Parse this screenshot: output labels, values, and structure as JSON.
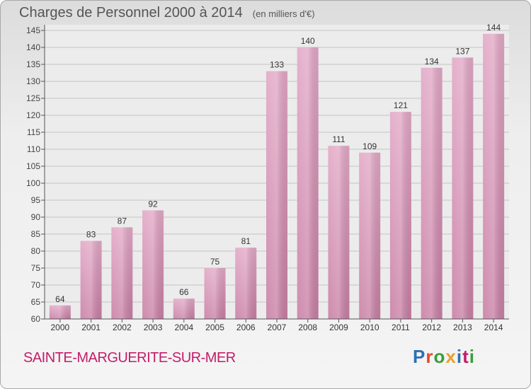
{
  "header": {
    "title": "Charges de Personnel 2000 à 2014",
    "subtitle": "(en milliers d'€)"
  },
  "footer": {
    "commune": "SAINTE-MARGUERITE-SUR-MER",
    "logo_text": "Proxiti"
  },
  "colors": {
    "bar": "#c87fa4",
    "bar_light": "#e2a8c6",
    "commune": "#c21d6a",
    "logo": [
      "#2e6fb5",
      "#e8462c",
      "#3a9d3a",
      "#e8a12c",
      "#2e6fb5",
      "#c21d6a",
      "#3a9d3a"
    ]
  },
  "chart_data": {
    "type": "bar",
    "title": "Charges de Personnel 2000 à 2014",
    "subtitle": "(en milliers d'€)",
    "categories": [
      "2000",
      "2001",
      "2002",
      "2003",
      "2004",
      "2005",
      "2006",
      "2007",
      "2008",
      "2009",
      "2010",
      "2011",
      "2012",
      "2013",
      "2014"
    ],
    "values": [
      64,
      83,
      87,
      92,
      66,
      75,
      81,
      133,
      140,
      111,
      109,
      121,
      134,
      137,
      144
    ],
    "ylim": [
      60,
      145
    ],
    "yticks": [
      60,
      65,
      70,
      75,
      80,
      85,
      90,
      95,
      100,
      105,
      110,
      115,
      120,
      125,
      130,
      135,
      140,
      145
    ],
    "grid": true,
    "data_labels": true
  }
}
